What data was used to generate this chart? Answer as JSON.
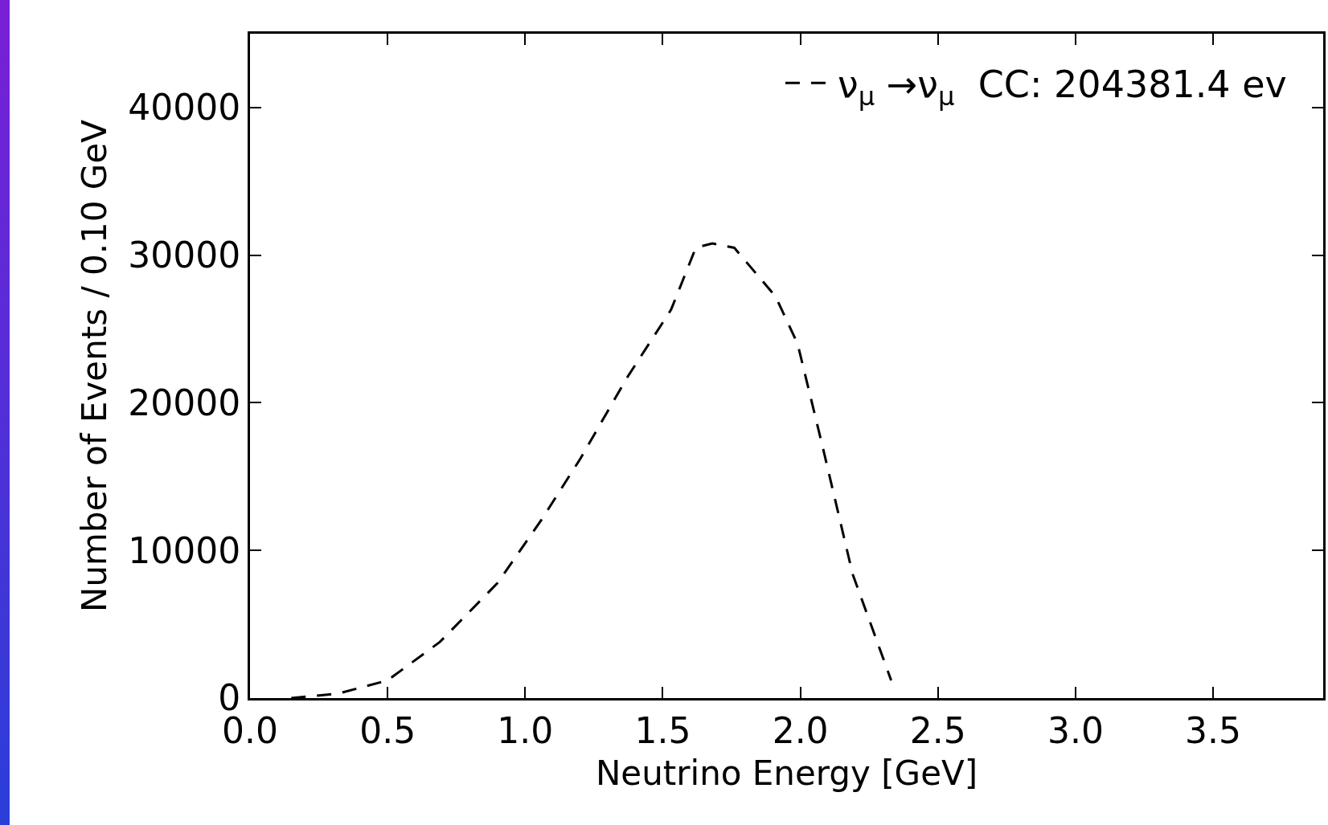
{
  "chart_data": {
    "type": "line",
    "xlabel": "Neutrino Energy [GeV]",
    "ylabel": "Number of Events / 0.10 GeV",
    "x": [
      0.15,
      0.32,
      0.5,
      0.69,
      0.9,
      1.06,
      1.2,
      1.37,
      1.53,
      1.62,
      1.68,
      1.76,
      1.91,
      1.99,
      2.08,
      2.19,
      2.33
    ],
    "series": [
      {
        "name": "ν$_{μ}$ →ν$_{μ}$  CC: 204381.4 ev",
        "color": "#000000",
        "values": [
          0,
          300,
          1200,
          3800,
          7800,
          12100,
          16200,
          21700,
          26300,
          30500,
          30800,
          30500,
          27200,
          24000,
          17100,
          8400,
          1200
        ]
      }
    ],
    "xlim": [
      0,
      3.9
    ],
    "ylim": [
      0,
      45000
    ],
    "xticks": [
      {
        "value": 0,
        "label": "0.0"
      },
      {
        "value": 0.5,
        "label": "0.5"
      },
      {
        "value": 1,
        "label": "1.0"
      },
      {
        "value": 1.5,
        "label": "1.5"
      },
      {
        "value": 2,
        "label": "2.0"
      },
      {
        "value": 2.5,
        "label": "2.5"
      },
      {
        "value": 3,
        "label": "3.0"
      },
      {
        "value": 3.5,
        "label": "3.5"
      }
    ],
    "yticks": [
      0,
      10000,
      20000,
      30000,
      40000
    ],
    "grid": false,
    "legend": "top right",
    "marker": "none",
    "line_style": "dashed"
  }
}
